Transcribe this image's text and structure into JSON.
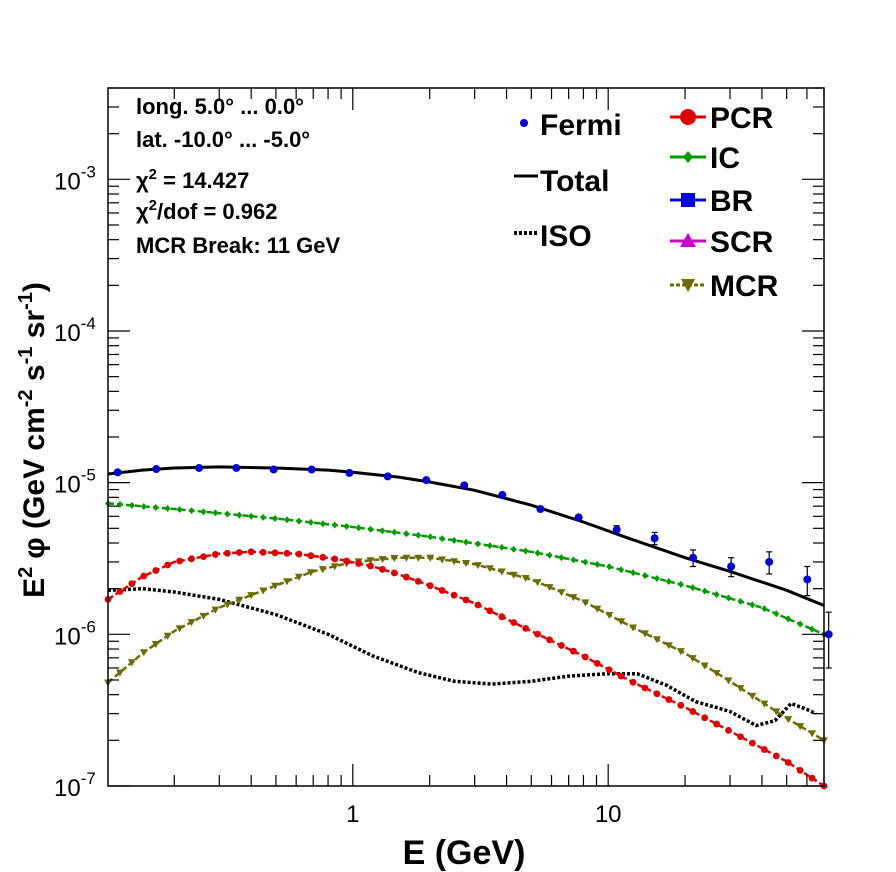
{
  "chart_data": {
    "type": "line",
    "xscale": "log",
    "yscale": "log",
    "xlim": [
      0.11,
      70
    ],
    "ylim": [
      1e-07,
      0.004
    ],
    "xlabel": "E (GeV)",
    "ylabel": {
      "prefix": "E",
      "prefix_sup": "2",
      "phi": "φ",
      "open": " (GeV cm",
      "sup_cm": "-2",
      "s": " s",
      "sup_s": "-1",
      "sr": " sr",
      "sup_sr": "-1",
      "close": ")"
    },
    "x_ticks": [
      {
        "value": 1,
        "label": "1"
      },
      {
        "value": 10,
        "label": "10"
      }
    ],
    "y_ticks": [
      {
        "value": 1e-07,
        "base": "10",
        "exp": "-7"
      },
      {
        "value": 1e-06,
        "base": "10",
        "exp": "-6"
      },
      {
        "value": 1e-05,
        "base": "10",
        "exp": "-5"
      },
      {
        "value": 0.0001,
        "base": "10",
        "exp": "-4"
      },
      {
        "value": 0.001,
        "base": "10",
        "exp": "-3"
      }
    ],
    "info": {
      "long": "long. 5.0° ... 0.0°",
      "lat": "lat. -10.0° ... -5.0°",
      "chi2_symbol": "χ",
      "chi2_sup": "2",
      "chi2_rest": " = 14.427",
      "chi2dof_sup": "2",
      "chi2dof_rest": "/dof = 0.962",
      "mcr_break": "MCR Break: 11 GeV"
    },
    "legend_left": [
      {
        "key": "fermi",
        "label": "Fermi",
        "color": "#0000cc",
        "style": "marker"
      },
      {
        "key": "total",
        "label": "Total",
        "color": "#000000",
        "style": "solid"
      },
      {
        "key": "iso",
        "label": "ISO",
        "color": "#000000",
        "style": "dotted"
      }
    ],
    "legend_right": [
      {
        "key": "pcr",
        "label": "PCR",
        "color": "#dd0000",
        "style": "circle"
      },
      {
        "key": "ic",
        "label": "IC",
        "color": "#009900",
        "style": "diamond"
      },
      {
        "key": "br",
        "label": "BR",
        "color": "#0000dd",
        "style": "square"
      },
      {
        "key": "scr",
        "label": "SCR",
        "color": "#cc00cc",
        "style": "triangle-up"
      },
      {
        "key": "mcr",
        "label": "MCR",
        "color": "#6b6b00",
        "style": "triangle-down"
      }
    ],
    "series": [
      {
        "name": "Fermi",
        "kind": "points",
        "color": "#0000cc",
        "x": [
          0.12,
          0.17,
          0.25,
          0.35,
          0.49,
          0.69,
          0.97,
          1.37,
          1.94,
          2.73,
          3.85,
          5.43,
          7.66,
          10.8,
          15.2,
          21.5,
          30.3,
          42.7,
          60.2,
          73
        ],
        "y": [
          1.17e-05,
          1.23e-05,
          1.25e-05,
          1.25e-05,
          1.22e-05,
          1.22e-05,
          1.16e-05,
          1.1e-05,
          1.04e-05,
          9.6e-06,
          8.3e-06,
          6.7e-06,
          5.9e-06,
          4.9e-06,
          4.3e-06,
          3.2e-06,
          2.8e-06,
          3e-06,
          2.3e-06,
          1e-06
        ],
        "yerr": [
          0,
          0,
          0,
          0,
          0,
          0,
          0,
          0,
          0,
          0,
          0,
          2e-07,
          2e-07,
          3e-07,
          4e-07,
          4e-07,
          4e-07,
          5e-07,
          5e-07,
          4e-07
        ]
      },
      {
        "name": "Total",
        "kind": "line",
        "color": "#000000",
        "x": [
          0.11,
          0.15,
          0.2,
          0.3,
          0.5,
          0.8,
          1.0,
          1.5,
          2.0,
          3.0,
          5.0,
          8.0,
          12,
          20,
          30,
          50,
          70
        ],
        "y": [
          1.14e-05,
          1.21e-05,
          1.25e-05,
          1.27e-05,
          1.25e-05,
          1.21e-05,
          1.17e-05,
          1.09e-05,
          1.01e-05,
          8.9e-06,
          7.1e-06,
          5.5e-06,
          4.3e-06,
          3.2e-06,
          2.6e-06,
          1.95e-06,
          1.55e-06
        ]
      },
      {
        "name": "IC",
        "kind": "markers",
        "color": "#009900",
        "x": [
          0.11,
          0.2,
          0.5,
          1.0,
          2.0,
          5.0,
          10,
          20,
          40,
          70
        ],
        "y": [
          7.3e-06,
          6.7e-06,
          5.8e-06,
          5.1e-06,
          4.4e-06,
          3.5e-06,
          2.8e-06,
          2.1e-06,
          1.5e-06,
          1e-06
        ]
      },
      {
        "name": "PCR",
        "kind": "markers",
        "color": "#dd0000",
        "x": [
          0.11,
          0.15,
          0.2,
          0.3,
          0.4,
          0.6,
          0.9,
          1.2,
          1.5,
          2.0,
          3.0,
          5.0,
          8.0,
          12,
          20,
          30,
          50,
          70
        ],
        "y": [
          1.7e-06,
          2.4e-06,
          3e-06,
          3.4e-06,
          3.5e-06,
          3.4e-06,
          3.1e-06,
          2.8e-06,
          2.5e-06,
          2.1e-06,
          1.6e-06,
          1.05e-06,
          7.2e-07,
          5e-07,
          3.3e-07,
          2.3e-07,
          1.45e-07,
          1e-07
        ]
      },
      {
        "name": "MCR",
        "kind": "markers",
        "color": "#6b6b00",
        "x": [
          0.11,
          0.15,
          0.2,
          0.3,
          0.5,
          0.7,
          1.0,
          1.5,
          2.0,
          3.0,
          5.0,
          8.0,
          12,
          20,
          30,
          50,
          70
        ],
        "y": [
          4.8e-07,
          7.5e-07,
          1.05e-06,
          1.5e-06,
          2.1e-06,
          2.6e-06,
          3e-06,
          3.2e-06,
          3.2e-06,
          2.9e-06,
          2.3e-06,
          1.65e-06,
          1.15e-06,
          7.5e-07,
          4.9e-07,
          2.8e-07,
          2e-07
        ]
      },
      {
        "name": "ISO",
        "kind": "dotted",
        "color": "#000000",
        "x": [
          0.11,
          0.15,
          0.2,
          0.3,
          0.5,
          0.8,
          1.2,
          1.8,
          2.5,
          3.5,
          5.0,
          7.0,
          10,
          13,
          17,
          22,
          30,
          38,
          45,
          52,
          60,
          65
        ],
        "y": [
          1.95e-06,
          2e-06,
          1.9e-06,
          1.7e-06,
          1.35e-06,
          1e-06,
          7.2e-07,
          5.6e-07,
          4.9e-07,
          4.7e-07,
          4.9e-07,
          5.3e-07,
          5.5e-07,
          5.5e-07,
          4.6e-07,
          3.6e-07,
          3.1e-07,
          2.5e-07,
          2.7e-07,
          3.5e-07,
          3.2e-07,
          3e-07
        ]
      }
    ]
  }
}
